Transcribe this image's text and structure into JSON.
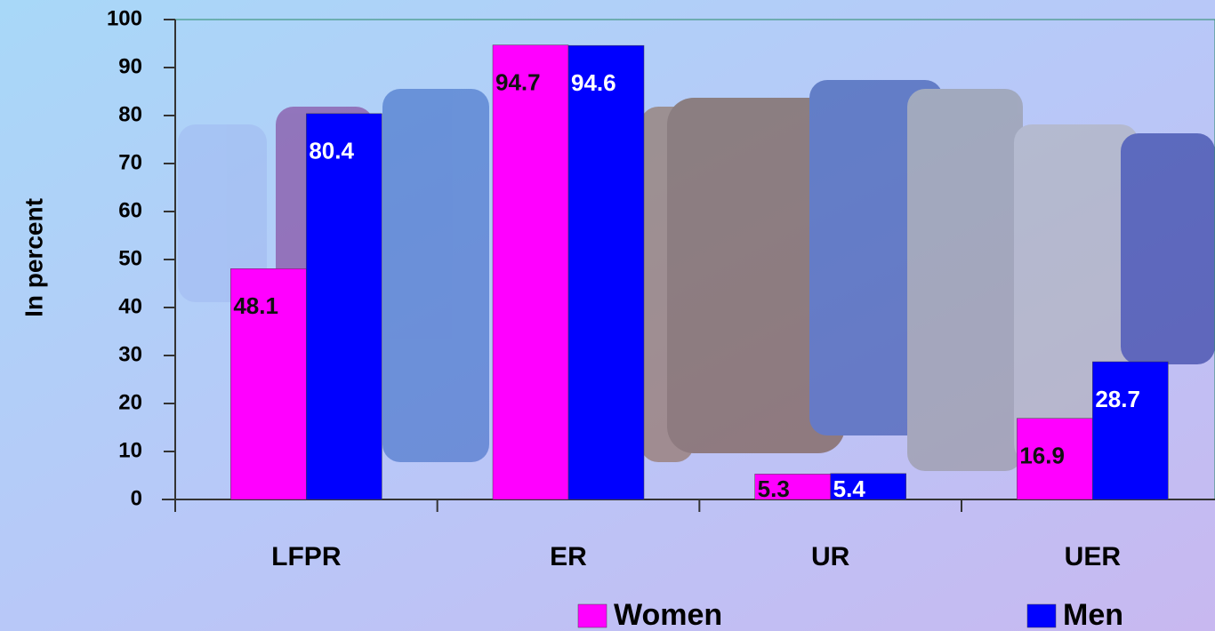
{
  "chart_data": {
    "type": "bar",
    "y_label": "In percent",
    "categories": [
      "LFPR",
      "ER",
      "UR",
      "UER"
    ],
    "series": [
      {
        "name": "Women",
        "color": "#ff00ff",
        "values": [
          48.1,
          94.7,
          5.3,
          16.9
        ]
      },
      {
        "name": "Men",
        "color": "#0000ff",
        "values": [
          80.4,
          94.6,
          5.4,
          28.7
        ]
      }
    ],
    "ylim": [
      0,
      100
    ],
    "yticks": [
      0,
      10,
      20,
      30,
      40,
      50,
      60,
      70,
      80,
      90,
      100
    ],
    "grid": false
  }
}
